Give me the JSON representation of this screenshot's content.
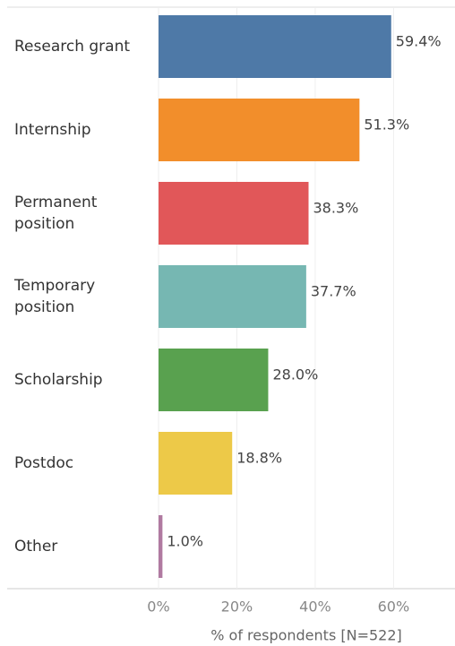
{
  "chart_data": {
    "type": "bar",
    "orientation": "horizontal",
    "categories": [
      "Research grant",
      "Internship",
      "Permanent\nposition",
      "Temporary\nposition",
      "Scholarship",
      "Postdoc",
      "Other"
    ],
    "values": [
      59.4,
      51.3,
      38.3,
      37.7,
      28.0,
      18.8,
      1.0
    ],
    "value_labels": [
      "59.4%",
      "51.3%",
      "38.3%",
      "37.7%",
      "28.0%",
      "18.8%",
      "1.0%"
    ],
    "colors": [
      "#4e79a7",
      "#f28e2b",
      "#e15759",
      "#76b7b2",
      "#59a14f",
      "#edc948",
      "#b07aa1"
    ],
    "xlim": [
      0,
      75
    ],
    "xticks": [
      {
        "value": 0,
        "label": "0%"
      },
      {
        "value": 20,
        "label": "20%"
      },
      {
        "value": 40,
        "label": "40%"
      },
      {
        "value": 60,
        "label": "60%"
      }
    ],
    "xlabel": "% of respondents [N=522]",
    "grid": true
  }
}
